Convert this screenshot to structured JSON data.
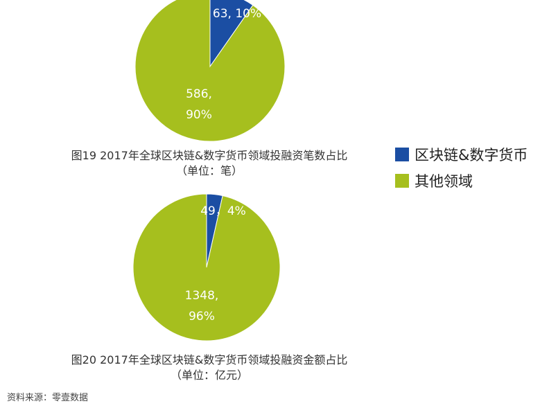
{
  "colors": {
    "blockchain": "#1b4ea3",
    "other": "#a6bf1e"
  },
  "legend": [
    {
      "label": "区块链&数字货币",
      "color": "#1b4ea3"
    },
    {
      "label": "其他领域",
      "color": "#a6bf1e"
    }
  ],
  "chart_data": [
    {
      "type": "pie",
      "title": "图19 2017年全球区块链&数字货币领域投融资笔数占比",
      "subtitle": "（单位：笔）",
      "slices": [
        {
          "name": "区块链&数字货币",
          "value": 63,
          "percent": 10,
          "label_lines": [
            "63, 10%"
          ]
        },
        {
          "name": "其他领域",
          "value": 586,
          "percent": 90,
          "label_lines": [
            "586,",
            "90%"
          ]
        }
      ]
    },
    {
      "type": "pie",
      "title": "图20 2017年全球区块链&数字货币领域投融资金额占比",
      "subtitle": "（单位：亿元）",
      "slices": [
        {
          "name": "区块链&数字货币",
          "value": 49,
          "percent": 4,
          "label_lines": [
            "49，4%"
          ]
        },
        {
          "name": "其他领域",
          "value": 1348,
          "percent": 96,
          "label_lines": [
            "1348,",
            "96%"
          ]
        }
      ]
    }
  ],
  "captions": {
    "fig19_title": "图19   2017年全球区块链&数字货币领域投融资笔数占比",
    "fig19_unit": "（单位：笔）",
    "fig20_title": "图20   2017年全球区块链&数字货币领域投融资金额占比",
    "fig20_unit": "（单位：亿元）"
  },
  "source": "资料来源：零壹数据"
}
